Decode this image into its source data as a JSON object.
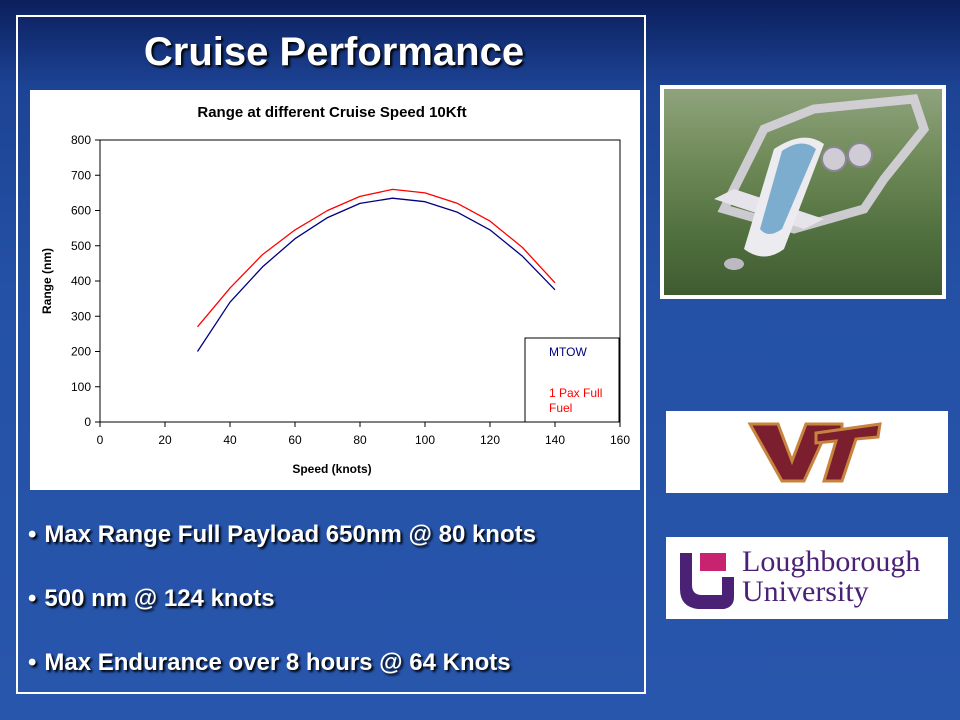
{
  "slide": {
    "title": "Cruise Performance",
    "bullets": [
      "Max Range Full Payload 650nm @ 80 knots",
      "500 nm @ 124 knots",
      "Max Endurance over 8 hours @ 64 Knots"
    ],
    "bullet_glyph": "•"
  },
  "logos": {
    "vt": {
      "text": "VT",
      "color": "#7b1e2e",
      "outline": "#c8843e"
    },
    "loughborough": {
      "line1": "Loughborough",
      "line2": "University",
      "color": "#4b2175",
      "mark_color": "#c8236e"
    }
  },
  "colors": {
    "background": "#2856ac",
    "series_mtow": "#000080",
    "series_1pax": "#ff0000"
  },
  "chart_data": {
    "type": "line",
    "title": "Range at different Cruise Speed 10Kft",
    "xlabel": "Speed (knots)",
    "ylabel": "Range (nm)",
    "xlim": [
      0,
      160
    ],
    "ylim": [
      0,
      800
    ],
    "xticks": [
      0,
      20,
      40,
      60,
      80,
      100,
      120,
      140,
      160
    ],
    "yticks": [
      0,
      100,
      200,
      300,
      400,
      500,
      600,
      700,
      800
    ],
    "grid": false,
    "legend": "bottom-right",
    "series": [
      {
        "name": "MTOW",
        "color": "#000080",
        "x": [
          30,
          40,
          50,
          60,
          70,
          80,
          90,
          100,
          110,
          120,
          130,
          140
        ],
        "y": [
          200,
          340,
          440,
          520,
          580,
          620,
          635,
          625,
          595,
          545,
          470,
          375
        ]
      },
      {
        "name": "1 Pax Full Fuel",
        "color": "#ff0000",
        "x": [
          30,
          40,
          50,
          60,
          70,
          80,
          90,
          100,
          110,
          120,
          130,
          140
        ],
        "y": [
          270,
          380,
          475,
          545,
          600,
          640,
          660,
          650,
          620,
          570,
          495,
          395
        ]
      }
    ]
  }
}
